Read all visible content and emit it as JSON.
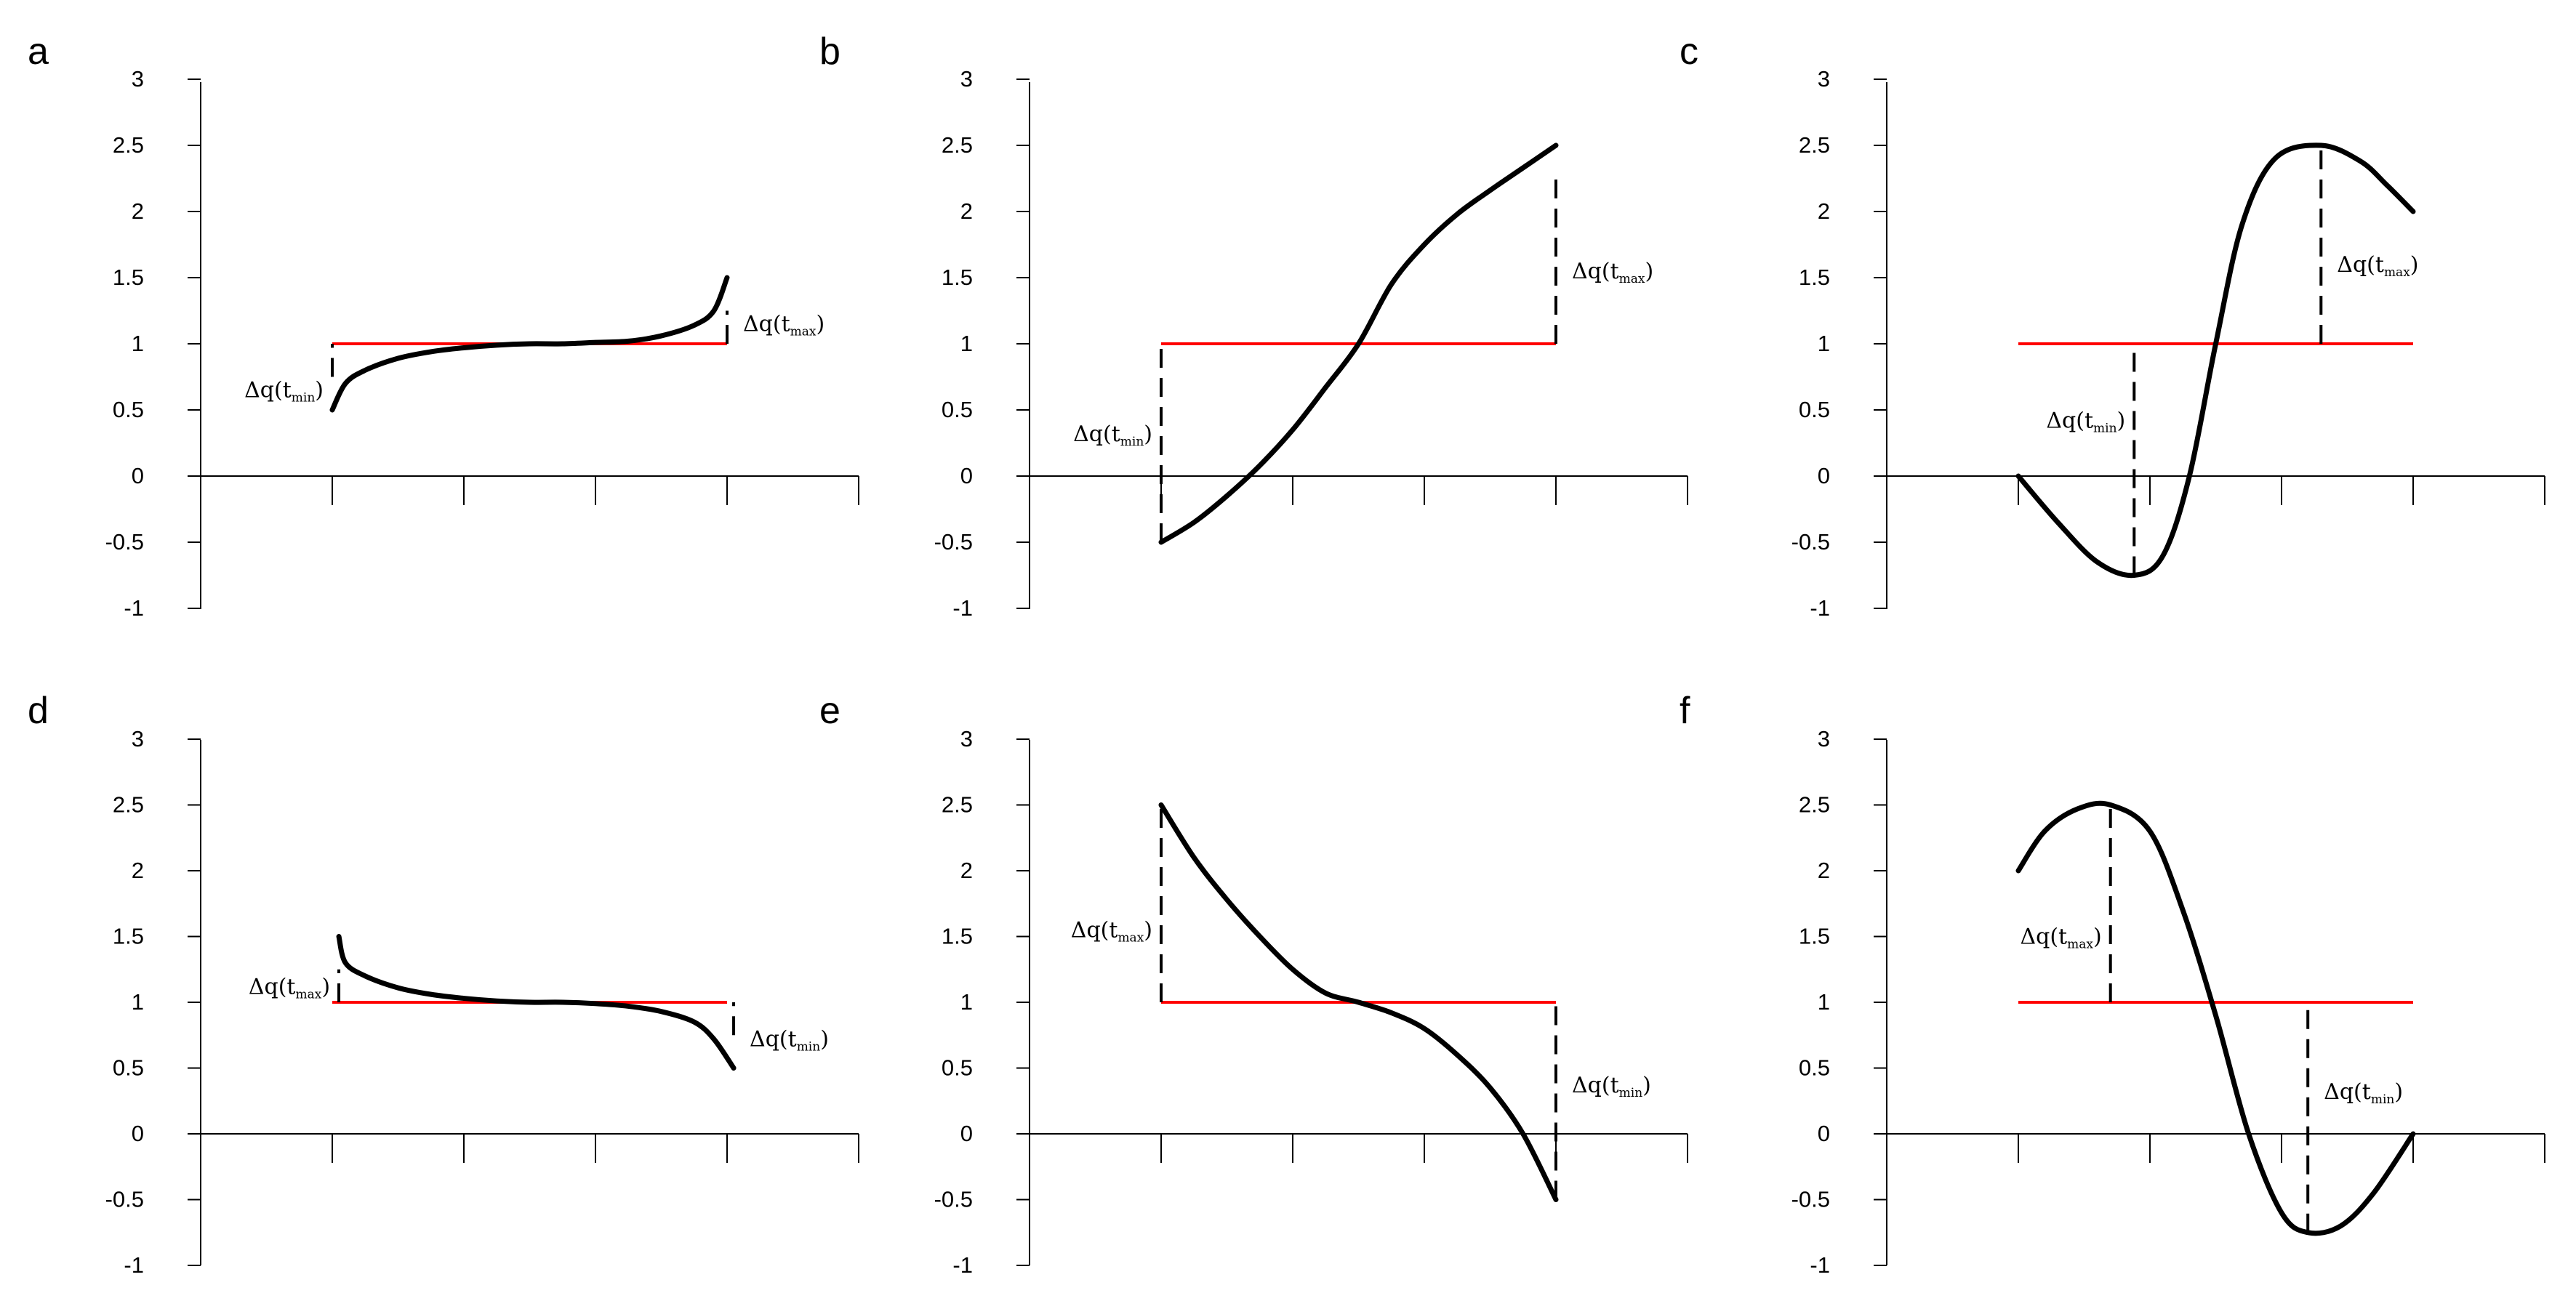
{
  "chart_data": [
    {
      "panel": "a",
      "type": "line",
      "ylim": [
        -1,
        3
      ],
      "yticks": [
        "3",
        "2.5",
        "2",
        "1.5",
        "1",
        "0.5",
        "0",
        "-0.5",
        "-1"
      ],
      "xlim": [
        0,
        5
      ],
      "xticks_unlabeled": [
        1,
        2,
        3,
        4,
        5
      ],
      "reference": {
        "x": [
          1,
          4
        ],
        "y": 1,
        "color": "#ff0000"
      },
      "curve": [
        [
          1,
          0.5
        ],
        [
          1.1,
          0.7
        ],
        [
          1.25,
          0.8
        ],
        [
          1.5,
          0.89
        ],
        [
          1.75,
          0.94
        ],
        [
          2,
          0.97
        ],
        [
          2.25,
          0.99
        ],
        [
          2.5,
          1.0
        ],
        [
          2.75,
          1.0
        ],
        [
          3,
          1.01
        ],
        [
          3.25,
          1.02
        ],
        [
          3.5,
          1.06
        ],
        [
          3.75,
          1.14
        ],
        [
          3.9,
          1.25
        ],
        [
          4,
          1.5
        ]
      ],
      "annotations": [
        {
          "text": "Δq(t",
          "sub": "min",
          "close": ")",
          "x": 1,
          "y_from": 0.75,
          "y_to": 1
        },
        {
          "text": "Δq(t",
          "sub": "max",
          "close": ")",
          "x": 4,
          "y_from": 1,
          "y_to": 1.25
        }
      ]
    },
    {
      "panel": "b",
      "type": "line",
      "ylim": [
        -1,
        3
      ],
      "yticks": [
        "3",
        "2.5",
        "2",
        "1.5",
        "1",
        "0.5",
        "0",
        "-0.5",
        "-1"
      ],
      "xlim": [
        0,
        5
      ],
      "xticks_unlabeled": [
        1,
        2,
        3,
        4,
        5
      ],
      "reference": {
        "x": [
          1,
          4
        ],
        "y": 1,
        "color": "#ff0000"
      },
      "curve": [
        [
          1,
          -0.5
        ],
        [
          1.25,
          -0.35
        ],
        [
          1.5,
          -0.15
        ],
        [
          1.75,
          0.08
        ],
        [
          2,
          0.35
        ],
        [
          2.25,
          0.67
        ],
        [
          2.5,
          1.0
        ],
        [
          2.75,
          1.45
        ],
        [
          3,
          1.75
        ],
        [
          3.25,
          1.98
        ],
        [
          3.5,
          2.16
        ],
        [
          3.75,
          2.33
        ],
        [
          4,
          2.5
        ]
      ],
      "annotations": [
        {
          "text": "Δq(t",
          "sub": "min",
          "close": ")",
          "x": 1,
          "y_from": -0.5,
          "y_to": 1
        },
        {
          "text": "Δq(t",
          "sub": "max",
          "close": ")",
          "x": 4,
          "y_from": 1,
          "y_to": 2.25
        }
      ]
    },
    {
      "panel": "c",
      "type": "line",
      "ylim": [
        -1,
        3
      ],
      "yticks": [
        "3",
        "2.5",
        "2",
        "1.5",
        "1",
        "0.5",
        "0",
        "-0.5",
        "-1"
      ],
      "xlim": [
        0,
        5
      ],
      "xticks_unlabeled": [
        1,
        2,
        3,
        4,
        5
      ],
      "reference": {
        "x": [
          1,
          4
        ],
        "y": 1,
        "color": "#ff0000"
      },
      "curve": [
        [
          1,
          0
        ],
        [
          1.3,
          -0.35
        ],
        [
          1.6,
          -0.65
        ],
        [
          1.88,
          -0.75
        ],
        [
          2.1,
          -0.6
        ],
        [
          2.3,
          0.0
        ],
        [
          2.5,
          1.0
        ],
        [
          2.7,
          1.9
        ],
        [
          2.95,
          2.4
        ],
        [
          3.3,
          2.5
        ],
        [
          3.6,
          2.38
        ],
        [
          3.8,
          2.2
        ],
        [
          4,
          2.0
        ]
      ],
      "annotations": [
        {
          "text": "Δq(t",
          "sub": "min",
          "close": ")",
          "x": 1.88,
          "y_from": -0.75,
          "y_to": 1
        },
        {
          "text": "Δq(t",
          "sub": "max",
          "close": ")",
          "x": 3.3,
          "y_from": 1,
          "y_to": 2.5
        }
      ]
    },
    {
      "panel": "d",
      "type": "line",
      "ylim": [
        -1,
        3
      ],
      "yticks": [
        "3",
        "2.5",
        "2",
        "1.5",
        "1",
        "0.5",
        "0",
        "-0.5",
        "-1"
      ],
      "xlim": [
        0,
        5
      ],
      "xticks_unlabeled": [
        1,
        2,
        3,
        4,
        5
      ],
      "reference": {
        "x": [
          1,
          4
        ],
        "y": 1,
        "color": "#ff0000"
      },
      "curve": [
        [
          1.05,
          1.5
        ],
        [
          1.1,
          1.3
        ],
        [
          1.25,
          1.2
        ],
        [
          1.5,
          1.11
        ],
        [
          1.75,
          1.06
        ],
        [
          2,
          1.03
        ],
        [
          2.25,
          1.01
        ],
        [
          2.5,
          1.0
        ],
        [
          2.75,
          1.0
        ],
        [
          3,
          0.99
        ],
        [
          3.25,
          0.97
        ],
        [
          3.5,
          0.93
        ],
        [
          3.75,
          0.85
        ],
        [
          3.9,
          0.72
        ],
        [
          4.05,
          0.5
        ]
      ],
      "annotations": [
        {
          "text": "Δq(t",
          "sub": "max",
          "close": ")",
          "x": 1.05,
          "y_from": 1,
          "y_to": 1.25
        },
        {
          "text": "Δq(t",
          "sub": "min",
          "close": ")",
          "x": 4.05,
          "y_from": 0.75,
          "y_to": 1
        }
      ]
    },
    {
      "panel": "e",
      "type": "line",
      "ylim": [
        -1,
        3
      ],
      "yticks": [
        "3",
        "2.5",
        "2",
        "1.5",
        "1",
        "0.5",
        "0",
        "-0.5",
        "-1"
      ],
      "xlim": [
        0,
        5
      ],
      "xticks_unlabeled": [
        1,
        2,
        3,
        4,
        5
      ],
      "reference": {
        "x": [
          1,
          4
        ],
        "y": 1,
        "color": "#ff0000"
      },
      "curve": [
        [
          1,
          2.5
        ],
        [
          1.25,
          2.1
        ],
        [
          1.5,
          1.78
        ],
        [
          1.75,
          1.5
        ],
        [
          2,
          1.25
        ],
        [
          2.25,
          1.07
        ],
        [
          2.5,
          1.0
        ],
        [
          2.75,
          0.92
        ],
        [
          3,
          0.8
        ],
        [
          3.25,
          0.6
        ],
        [
          3.5,
          0.35
        ],
        [
          3.75,
          0.0
        ],
        [
          4,
          -0.5
        ]
      ],
      "annotations": [
        {
          "text": "Δq(t",
          "sub": "max",
          "close": ")",
          "x": 1,
          "y_from": 1,
          "y_to": 2.5
        },
        {
          "text": "Δq(t",
          "sub": "min",
          "close": ")",
          "x": 4,
          "y_from": -0.5,
          "y_to": 1
        }
      ]
    },
    {
      "panel": "f",
      "type": "line",
      "ylim": [
        -1,
        3
      ],
      "yticks": [
        "3",
        "2.5",
        "2",
        "1.5",
        "1",
        "0.5",
        "0",
        "-0.5",
        "-1"
      ],
      "xlim": [
        0,
        5
      ],
      "xticks_unlabeled": [
        1,
        2,
        3,
        4,
        5
      ],
      "reference": {
        "x": [
          1,
          4
        ],
        "y": 1,
        "color": "#ff0000"
      },
      "curve": [
        [
          1,
          2.0
        ],
        [
          1.2,
          2.3
        ],
        [
          1.45,
          2.47
        ],
        [
          1.7,
          2.5
        ],
        [
          2.0,
          2.3
        ],
        [
          2.25,
          1.7
        ],
        [
          2.5,
          0.9
        ],
        [
          2.75,
          0.0
        ],
        [
          3.0,
          -0.6
        ],
        [
          3.2,
          -0.75
        ],
        [
          3.45,
          -0.7
        ],
        [
          3.7,
          -0.45
        ],
        [
          4,
          0.0
        ]
      ],
      "annotations": [
        {
          "text": "Δq(t",
          "sub": "max",
          "close": ")",
          "x": 1.7,
          "y_from": 1,
          "y_to": 2.5
        },
        {
          "text": "Δq(t",
          "sub": "min",
          "close": ")",
          "x": 3.2,
          "y_from": -0.75,
          "y_to": 1
        }
      ]
    }
  ]
}
